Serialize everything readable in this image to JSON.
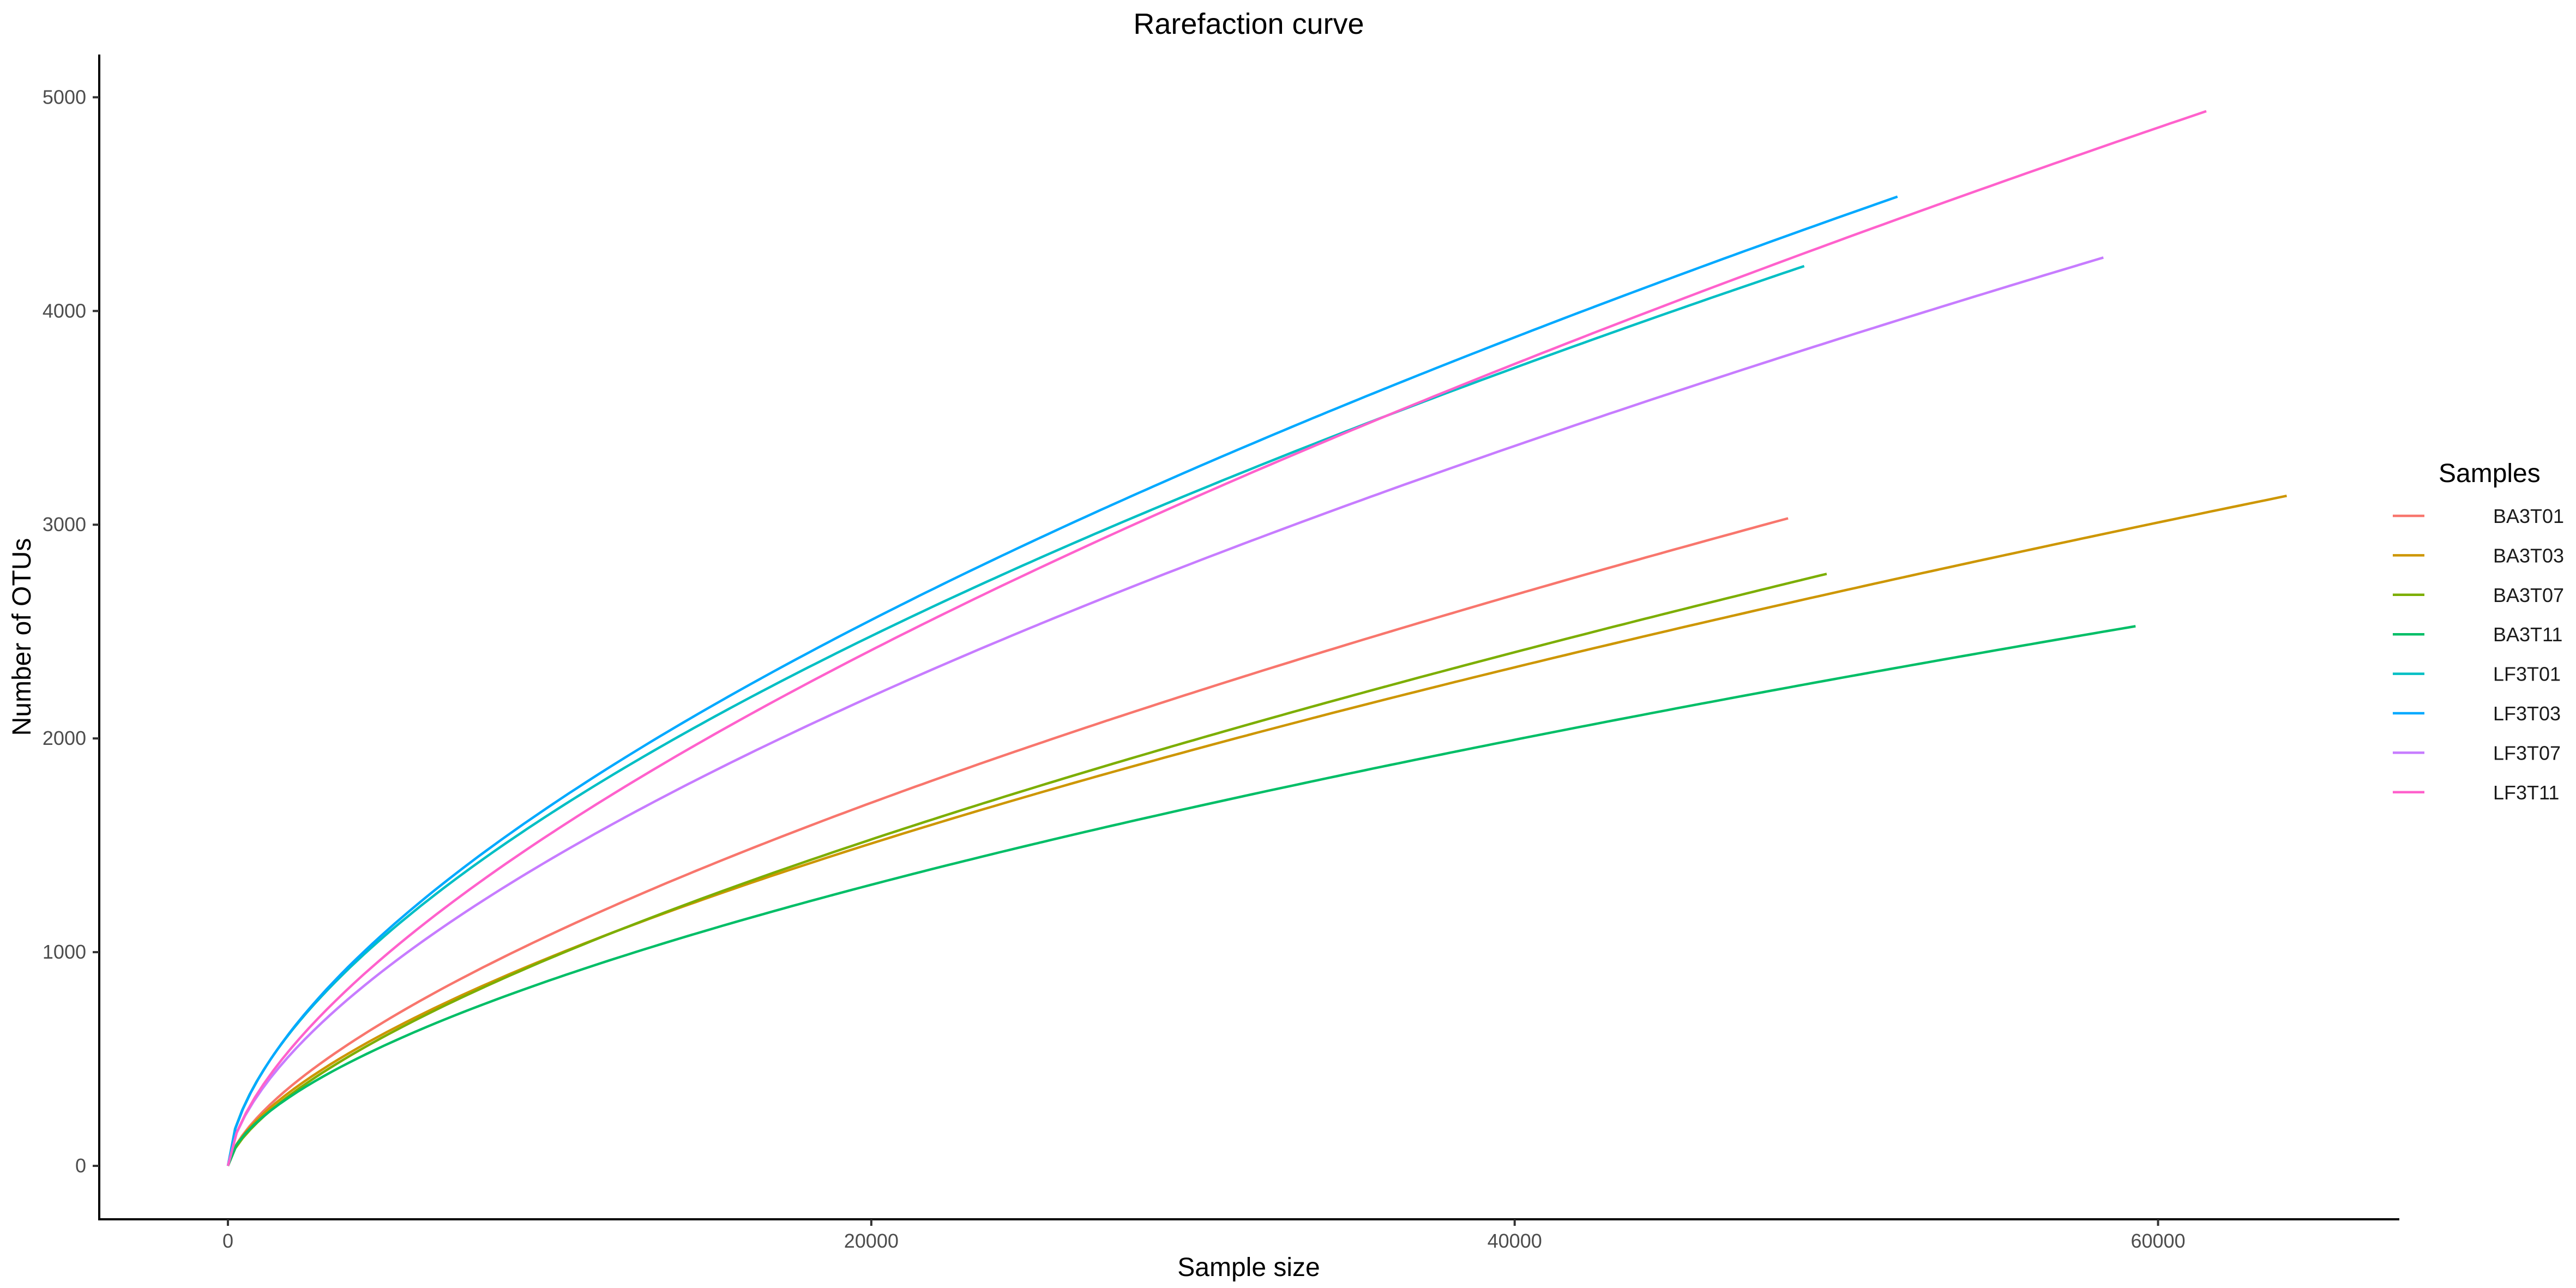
{
  "chart_data": {
    "type": "line",
    "title": "Rarefaction curve",
    "xlabel": "Sample size",
    "ylabel": "Number of OTUs",
    "xlim": [
      -4000,
      67500
    ],
    "ylim": [
      -250,
      5200
    ],
    "xticks": [
      0,
      20000,
      40000,
      60000
    ],
    "yticks": [
      0,
      1000,
      2000,
      3000,
      4000,
      5000
    ],
    "grid": false,
    "legend_title": "Samples",
    "legend_position": "right",
    "series": [
      {
        "name": "BA3T01",
        "color": "#F8766D",
        "x_max": 48500,
        "y_end": 3030,
        "exponent": 0.653
      },
      {
        "name": "BA3T03",
        "color": "#CD9600",
        "x_max": 64000,
        "y_end": 3135,
        "exponent": 0.629
      },
      {
        "name": "BA3T07",
        "color": "#7CAE00",
        "x_max": 49700,
        "y_end": 2770,
        "exponent": 0.654
      },
      {
        "name": "BA3T11",
        "color": "#00BE67",
        "x_max": 59300,
        "y_end": 2525,
        "exponent": 0.6
      },
      {
        "name": "LF3T01",
        "color": "#00BFC4",
        "x_max": 49000,
        "y_end": 4210,
        "exponent": 0.591
      },
      {
        "name": "LF3T03",
        "color": "#00A9FF",
        "x_max": 51900,
        "y_end": 4535,
        "exponent": 0.602
      },
      {
        "name": "LF3T07",
        "color": "#C77CFF",
        "x_max": 58300,
        "y_end": 4250,
        "exponent": 0.617
      },
      {
        "name": "LF3T11",
        "color": "#FF61CC",
        "x_max": 61500,
        "y_end": 4935,
        "exponent": 0.637
      }
    ]
  }
}
